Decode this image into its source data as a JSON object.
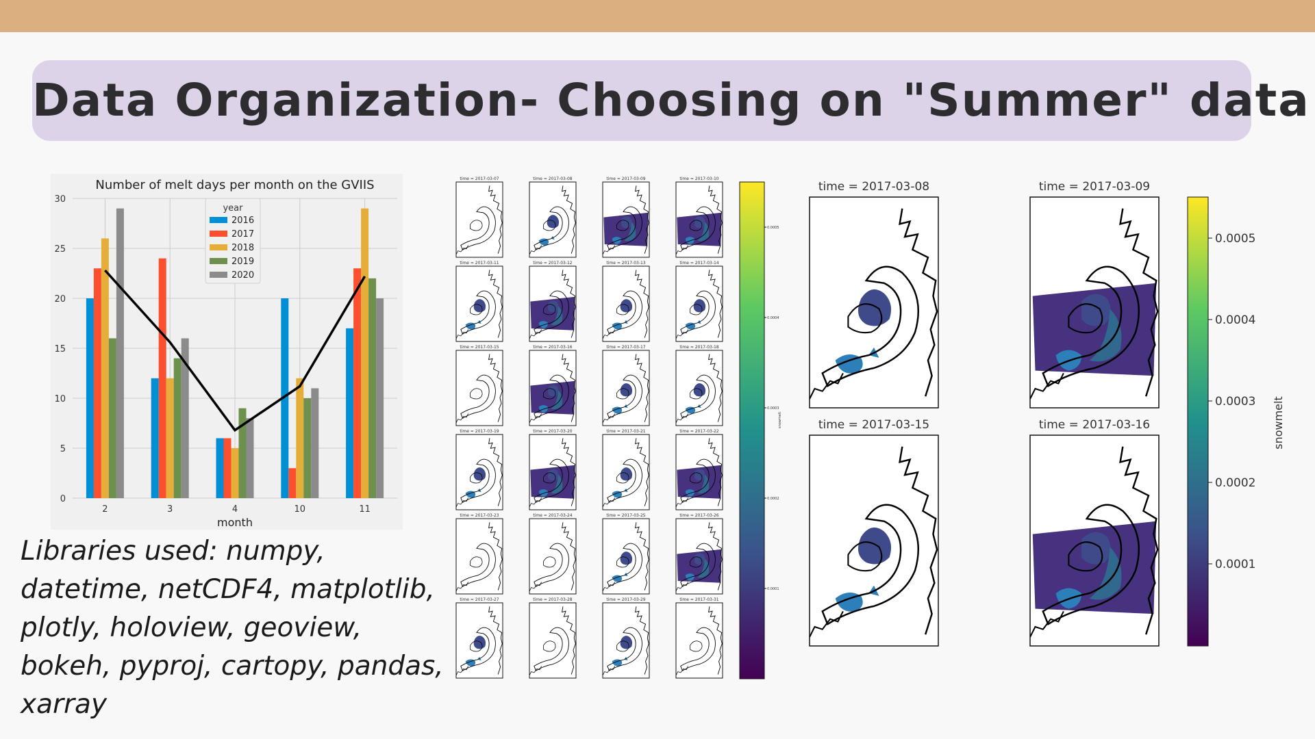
{
  "slide": {
    "title": "Data Organization- Choosing on \"Summer\" data",
    "libraries_text": "Libraries used: numpy, datetime, netCDF4, matplotlib, plotly, holoview, geoview, bokeh, pyproj, cartopy, pandas, xarray",
    "colors": {
      "top_band": "#dcaf80",
      "title_box": "#dcd3e8",
      "title_text": "#2d2d30"
    }
  },
  "chart_data": [
    {
      "type": "bar",
      "title": "Number of melt days per month on the GVIIS",
      "xlabel": "month",
      "ylabel": "",
      "categories": [
        "2",
        "3",
        "4",
        "10",
        "11"
      ],
      "ylim": [
        0,
        30
      ],
      "yticks": [
        0,
        5,
        10,
        15,
        20,
        25,
        30
      ],
      "grid": true,
      "legend_title": "year",
      "legend_position": "top-center",
      "series": [
        {
          "name": "2016",
          "color": "#008fd5",
          "values": [
            20,
            12,
            6,
            20,
            17
          ]
        },
        {
          "name": "2017",
          "color": "#fc4f30",
          "values": [
            23,
            24,
            6,
            3,
            23
          ]
        },
        {
          "name": "2018",
          "color": "#e5ae38",
          "values": [
            26,
            12,
            5,
            12,
            29
          ]
        },
        {
          "name": "2019",
          "color": "#6d904f",
          "values": [
            16,
            14,
            9,
            10,
            22
          ]
        },
        {
          "name": "2020",
          "color": "#8b8b8b",
          "values": [
            29,
            16,
            8,
            11,
            20
          ]
        }
      ],
      "overlay_line": {
        "type": "line",
        "color": "#000000",
        "values": [
          22.8,
          15.6,
          6.8,
          11.2,
          22.2
        ]
      }
    },
    {
      "type": "heatmap",
      "description_kind": "small multiple snowmelt maps",
      "panel_titles": [
        "time = 2017-03-07",
        "time = 2017-03-08",
        "time = 2017-03-09",
        "time = 2017-03-10",
        "time = 2017-03-11",
        "time = 2017-03-12",
        "time = 2017-03-13",
        "time = 2017-03-14",
        "time = 2017-03-15",
        "time = 2017-03-16",
        "time = 2017-03-17",
        "time = 2017-03-18",
        "time = 2017-03-19",
        "time = 2017-03-20",
        "time = 2017-03-21",
        "time = 2017-03-22",
        "time = 2017-03-23",
        "time = 2017-03-24",
        "time = 2017-03-25",
        "time = 2017-03-26",
        "time = 2017-03-27",
        "time = 2017-03-28",
        "time = 2017-03-29",
        "time = 2017-03-31"
      ],
      "colorbar_label": "snowmelt",
      "colorbar_ticks": [
        "0.0001",
        "0.0002",
        "0.0003",
        "0.0004",
        "0.0005"
      ],
      "colormap": "viridis"
    },
    {
      "type": "heatmap",
      "description_kind": "large snowmelt maps",
      "panel_titles": [
        "time = 2017-03-08",
        "time = 2017-03-09",
        "time = 2017-03-15",
        "time = 2017-03-16"
      ],
      "colorbar_label": "snowmelt",
      "colorbar_ticks": [
        "0.0001",
        "0.0002",
        "0.0003",
        "0.0004",
        "0.0005"
      ],
      "colormap": "viridis"
    }
  ]
}
